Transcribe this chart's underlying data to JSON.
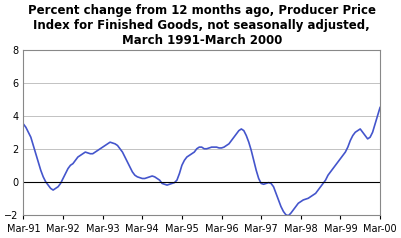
{
  "title": "Percent change from 12 months ago, Producer Price\nIndex for Finished Goods, not seasonally adjusted,\nMarch 1991-March 2000",
  "title_fontsize": 8.5,
  "title_fontweight": "bold",
  "line_color": "#4455cc",
  "line_width": 1.2,
  "background_color": "#ffffff",
  "ylim": [
    -2.0,
    8.0
  ],
  "yticks": [
    -2.0,
    0.0,
    2.0,
    4.0,
    6.0,
    8.0
  ],
  "xtick_labels": [
    "Mar-91",
    "Mar-92",
    "Mar-93",
    "Mar-94",
    "Mar-95",
    "Mar-96",
    "Mar-97",
    "Mar-98",
    "Mar-99",
    "Mar-00"
  ],
  "grid_color": "#aaaaaa",
  "values": [
    3.5,
    3.3,
    3.0,
    2.7,
    2.2,
    1.7,
    1.2,
    0.7,
    0.3,
    0.0,
    -0.2,
    -0.4,
    -0.5,
    -0.4,
    -0.3,
    -0.1,
    0.2,
    0.5,
    0.8,
    1.0,
    1.1,
    1.3,
    1.5,
    1.6,
    1.7,
    1.8,
    1.75,
    1.7,
    1.7,
    1.8,
    1.9,
    2.0,
    2.1,
    2.2,
    2.3,
    2.4,
    2.35,
    2.3,
    2.2,
    2.0,
    1.8,
    1.5,
    1.2,
    0.9,
    0.6,
    0.4,
    0.3,
    0.25,
    0.2,
    0.2,
    0.25,
    0.3,
    0.35,
    0.3,
    0.2,
    0.1,
    -0.1,
    -0.15,
    -0.2,
    -0.15,
    -0.1,
    -0.05,
    0.1,
    0.5,
    1.0,
    1.3,
    1.5,
    1.6,
    1.7,
    1.8,
    2.0,
    2.1,
    2.1,
    2.0,
    2.0,
    2.05,
    2.1,
    2.1,
    2.1,
    2.05,
    2.05,
    2.1,
    2.2,
    2.3,
    2.5,
    2.7,
    2.9,
    3.1,
    3.2,
    3.1,
    2.8,
    2.4,
    1.9,
    1.3,
    0.7,
    0.2,
    -0.1,
    -0.15,
    -0.1,
    -0.05,
    -0.1,
    -0.3,
    -0.7,
    -1.1,
    -1.5,
    -1.8,
    -2.0,
    -2.05,
    -1.9,
    -1.7,
    -1.5,
    -1.3,
    -1.2,
    -1.1,
    -1.05,
    -1.0,
    -0.9,
    -0.8,
    -0.7,
    -0.5,
    -0.3,
    -0.1,
    0.1,
    0.4,
    0.6,
    0.8,
    1.0,
    1.2,
    1.4,
    1.6,
    1.8,
    2.1,
    2.5,
    2.8,
    3.0,
    3.1,
    3.2,
    3.0,
    2.8,
    2.6,
    2.7,
    3.0,
    3.5,
    4.0,
    4.5
  ]
}
